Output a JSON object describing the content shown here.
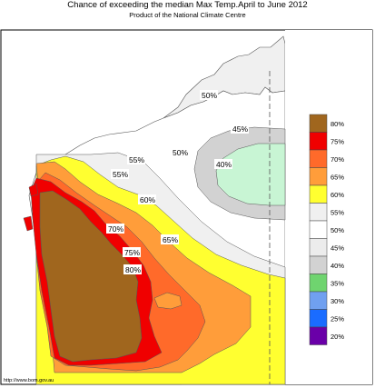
{
  "title": "Chance of exceeding the median Max Temp.April to June 2012",
  "subtitle": "Product of the National Climate Centre",
  "footer": "http://www.bom.gov.au",
  "contour_labels": [
    "50%",
    "45%",
    "40%",
    "50%",
    "55%",
    "55%",
    "60%",
    "70%",
    "65%",
    "75%",
    "80%"
  ],
  "legend": {
    "labels": [
      "80%",
      "75%",
      "70%",
      "65%",
      "60%",
      "55%",
      "50%",
      "45%",
      "40%",
      "35%",
      "30%",
      "25%",
      "20%"
    ],
    "colors": [
      "#a0661e",
      "#f00000",
      "#ff6a2a",
      "#ff9d3a",
      "#ffff30",
      "#f0f0f0",
      "#ffffff",
      "#ececec",
      "#d2d2d2",
      "#6fd46f",
      "#70a0f0",
      "#1a6cff",
      "#6a00a8"
    ]
  },
  "colors": {
    "land_outside": "#f0f0f0",
    "ocean": "#ffffff",
    "green_40": "#c8f5d4"
  }
}
